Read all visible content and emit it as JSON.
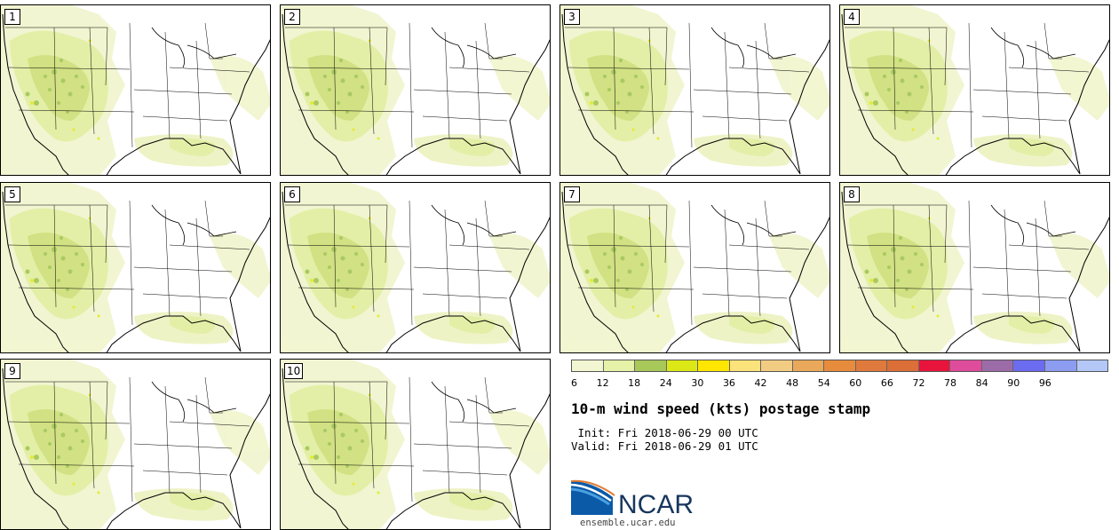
{
  "panels": [
    {
      "label": "1"
    },
    {
      "label": "2"
    },
    {
      "label": "3"
    },
    {
      "label": "4"
    },
    {
      "label": "5"
    },
    {
      "label": "6"
    },
    {
      "label": "7"
    },
    {
      "label": "8"
    },
    {
      "label": "9"
    },
    {
      "label": "10"
    }
  ],
  "colorbar": {
    "ticks": [
      "6",
      "12",
      "18",
      "24",
      "30",
      "36",
      "42",
      "48",
      "54",
      "60",
      "66",
      "72",
      "78",
      "84",
      "90",
      "96"
    ],
    "colors": [
      "#f3f6d2",
      "#e6f2a8",
      "#a8c85a",
      "#dbe816",
      "#ffe600",
      "#fbe27a",
      "#f3cc84",
      "#e9a85a",
      "#e68c3c",
      "#e07a3c",
      "#dc6e38",
      "#e8143c",
      "#e04c9c",
      "#9c6ca8",
      "#6c6cf0",
      "#8c9cf0",
      "#b4c8f8"
    ]
  },
  "title": "10-m wind speed (kts) postage stamp",
  "init_text": " Init: Fri 2018-06-29 00 UTC",
  "valid_text": "Valid: Fri 2018-06-29 01 UTC",
  "logo": {
    "text": "NCAR",
    "url": "ensemble.ucar.edu"
  },
  "colors": {
    "light": "#f1f5cf",
    "mid": "#e2efa2",
    "dark": "#a6c75a",
    "yellow": "#e4ea2a"
  }
}
